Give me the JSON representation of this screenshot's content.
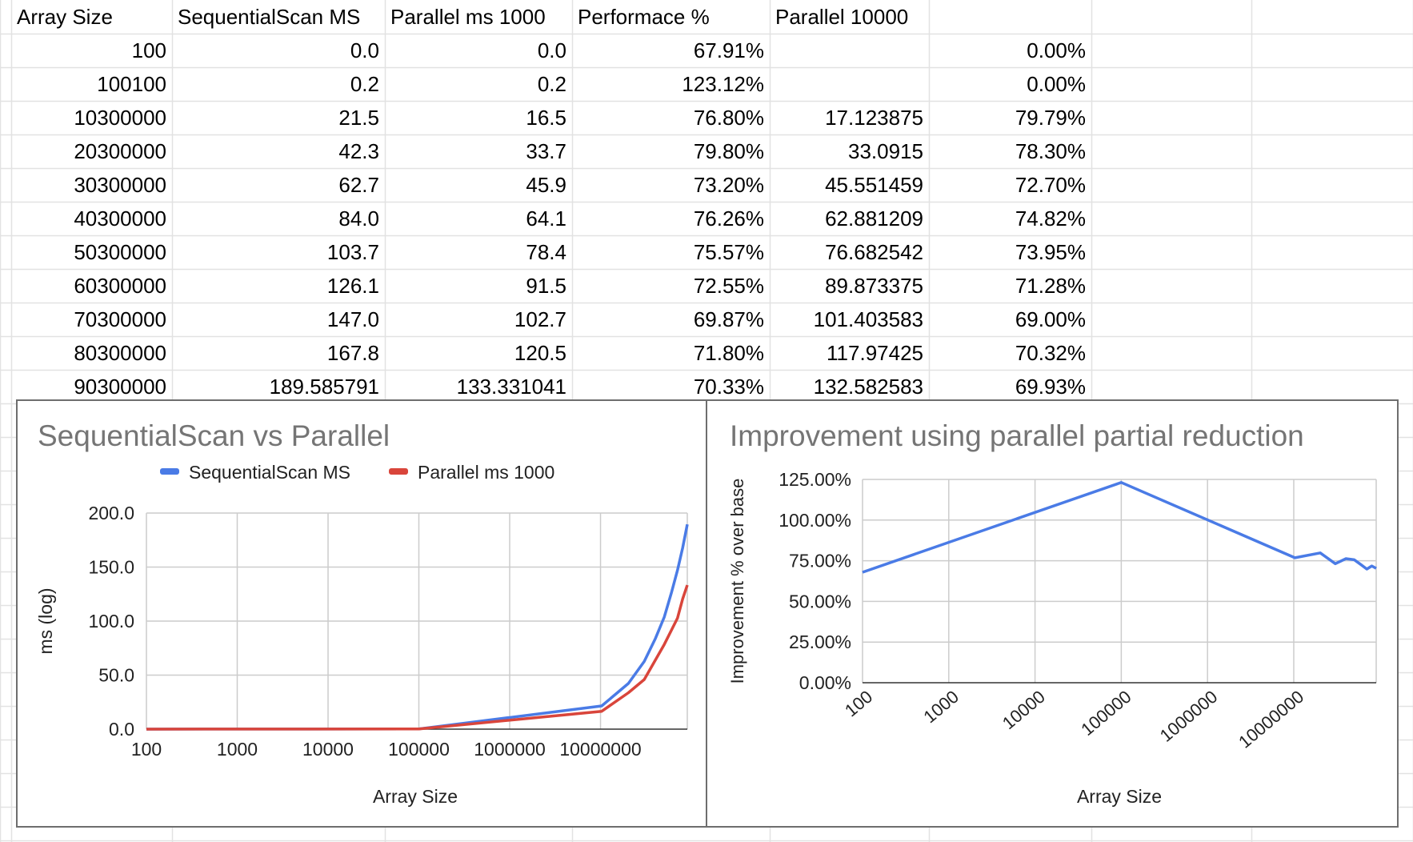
{
  "sheet": {
    "headers": [
      "Array Size",
      "SequentialScan MS",
      "Parallel ms 1000",
      "Performace %",
      "Parallel 10000",
      ""
    ],
    "rows": [
      [
        "100",
        "0.0",
        "0.0",
        "67.91%",
        "",
        "0.00%"
      ],
      [
        "100100",
        "0.2",
        "0.2",
        "123.12%",
        "",
        "0.00%"
      ],
      [
        "10300000",
        "21.5",
        "16.5",
        "76.80%",
        "17.123875",
        "79.79%"
      ],
      [
        "20300000",
        "42.3",
        "33.7",
        "79.80%",
        "33.0915",
        "78.30%"
      ],
      [
        "30300000",
        "62.7",
        "45.9",
        "73.20%",
        "45.551459",
        "72.70%"
      ],
      [
        "40300000",
        "84.0",
        "64.1",
        "76.26%",
        "62.881209",
        "74.82%"
      ],
      [
        "50300000",
        "103.7",
        "78.4",
        "75.57%",
        "76.682542",
        "73.95%"
      ],
      [
        "60300000",
        "126.1",
        "91.5",
        "72.55%",
        "89.873375",
        "71.28%"
      ],
      [
        "70300000",
        "147.0",
        "102.7",
        "69.87%",
        "101.403583",
        "69.00%"
      ],
      [
        "80300000",
        "167.8",
        "120.5",
        "71.80%",
        "117.97425",
        "70.32%"
      ],
      [
        "90300000",
        "189.585791",
        "133.331041",
        "70.33%",
        "132.582583",
        "69.93%"
      ]
    ]
  },
  "chart_data": [
    {
      "type": "line",
      "title": "SequentialScan vs Parallel",
      "xlabel": "Array Size",
      "ylabel": "ms (log)",
      "x_scale": "log",
      "x_ticks": [
        "100",
        "1000",
        "10000",
        "100000",
        "1000000",
        "10000000"
      ],
      "y_ticks": [
        "0.0",
        "50.0",
        "100.0",
        "150.0",
        "200.0"
      ],
      "ylim": [
        0,
        200
      ],
      "legend_position": "top",
      "grid": true,
      "x": [
        100,
        100100,
        10300000,
        20300000,
        30300000,
        40300000,
        50300000,
        60300000,
        70300000,
        80300000,
        90300000
      ],
      "series": [
        {
          "name": "SequentialScan MS",
          "color": "#4a7be6",
          "values": [
            0.0,
            0.2,
            21.5,
            42.3,
            62.7,
            84.0,
            103.7,
            126.1,
            147.0,
            167.8,
            189.585791
          ]
        },
        {
          "name": "Parallel ms 1000",
          "color": "#d9453b",
          "values": [
            0.0,
            0.2,
            16.5,
            33.7,
            45.9,
            64.1,
            78.4,
            91.5,
            102.7,
            120.5,
            133.331041
          ]
        }
      ]
    },
    {
      "type": "line",
      "title": "Improvement using parallel partial reduction",
      "xlabel": "Array Size",
      "ylabel": "Improvement % over base",
      "x_scale": "log",
      "x_ticks": [
        "100",
        "1000",
        "10000",
        "100000",
        "1000000",
        "10000000"
      ],
      "y_ticks": [
        "0.00%",
        "25.00%",
        "50.00%",
        "75.00%",
        "100.00%",
        "125.00%"
      ],
      "ylim": [
        0,
        125
      ],
      "grid": true,
      "x": [
        100,
        100100,
        10300000,
        20300000,
        30300000,
        40300000,
        50300000,
        60300000,
        70300000,
        80300000,
        90300000
      ],
      "series": [
        {
          "color": "#4a7be6",
          "values": [
            67.91,
            123.12,
            76.8,
            79.8,
            73.2,
            76.26,
            75.57,
            72.55,
            69.87,
            71.8,
            70.33
          ]
        }
      ]
    }
  ]
}
